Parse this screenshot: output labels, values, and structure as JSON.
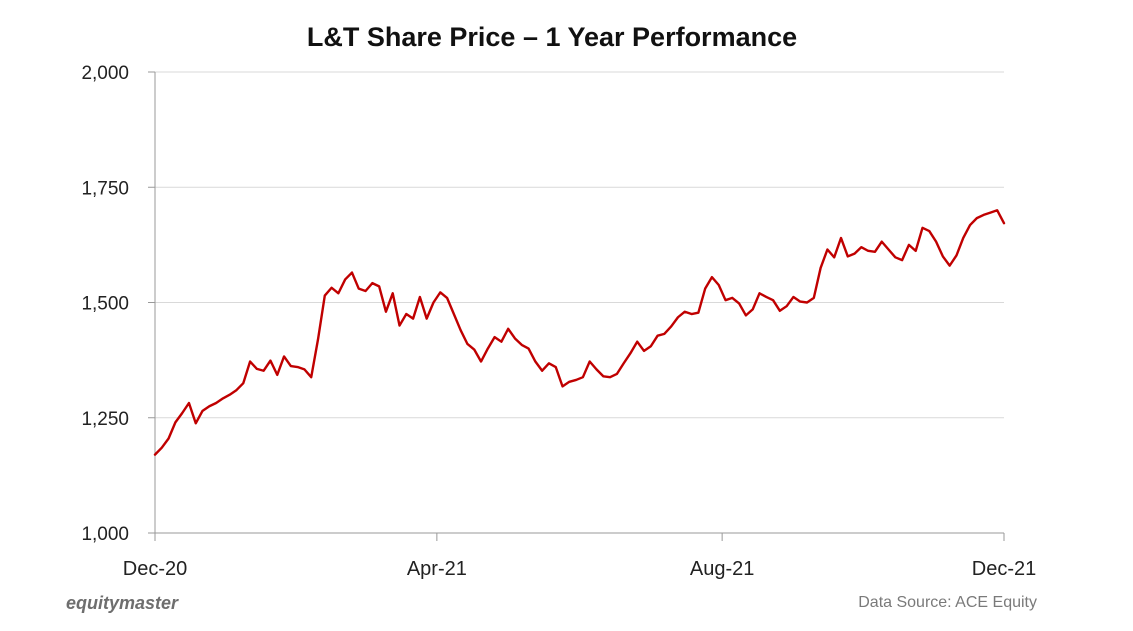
{
  "chart_data": {
    "type": "line",
    "title": "L&T Share Price – 1 Year Performance",
    "xlabel": "",
    "ylabel": "",
    "ylim": [
      1000,
      2000
    ],
    "yticks": [
      1000,
      1250,
      1500,
      1750,
      2000
    ],
    "ytick_labels": [
      "1,000",
      "1,250",
      "1,500",
      "1,750",
      "2,000"
    ],
    "xlim": [
      0,
      250
    ],
    "xticks": [
      0,
      83,
      167,
      250
    ],
    "xtick_labels": [
      "Dec-20",
      "Apr-21",
      "Aug-21",
      "Dec-21"
    ],
    "grid": "horizontal",
    "legend": "none",
    "colors": {
      "line": "#c00000",
      "grid": "#d9d9d9",
      "axis": "#999999"
    },
    "series": [
      {
        "name": "L&T Share Price",
        "points": [
          [
            0,
            1170
          ],
          [
            2,
            1185
          ],
          [
            4,
            1205
          ],
          [
            6,
            1240
          ],
          [
            8,
            1260
          ],
          [
            10,
            1282
          ],
          [
            12,
            1238
          ],
          [
            14,
            1265
          ],
          [
            16,
            1275
          ],
          [
            18,
            1282
          ],
          [
            20,
            1292
          ],
          [
            22,
            1300
          ],
          [
            24,
            1310
          ],
          [
            26,
            1325
          ],
          [
            28,
            1372
          ],
          [
            30,
            1356
          ],
          [
            32,
            1352
          ],
          [
            34,
            1374
          ],
          [
            36,
            1343
          ],
          [
            38,
            1383
          ],
          [
            40,
            1362
          ],
          [
            42,
            1360
          ],
          [
            44,
            1355
          ],
          [
            46,
            1338
          ],
          [
            48,
            1420
          ],
          [
            50,
            1515
          ],
          [
            52,
            1532
          ],
          [
            54,
            1520
          ],
          [
            56,
            1550
          ],
          [
            58,
            1565
          ],
          [
            60,
            1530
          ],
          [
            62,
            1525
          ],
          [
            64,
            1542
          ],
          [
            66,
            1535
          ],
          [
            68,
            1480
          ],
          [
            70,
            1520
          ],
          [
            72,
            1450
          ],
          [
            74,
            1475
          ],
          [
            76,
            1465
          ],
          [
            78,
            1512
          ],
          [
            80,
            1465
          ],
          [
            82,
            1500
          ],
          [
            84,
            1522
          ],
          [
            86,
            1510
          ],
          [
            88,
            1475
          ],
          [
            90,
            1440
          ],
          [
            92,
            1410
          ],
          [
            94,
            1398
          ],
          [
            96,
            1372
          ],
          [
            98,
            1400
          ],
          [
            100,
            1425
          ],
          [
            102,
            1415
          ],
          [
            104,
            1443
          ],
          [
            106,
            1422
          ],
          [
            108,
            1408
          ],
          [
            110,
            1400
          ],
          [
            112,
            1372
          ],
          [
            114,
            1352
          ],
          [
            116,
            1368
          ],
          [
            118,
            1360
          ],
          [
            120,
            1318
          ],
          [
            122,
            1328
          ],
          [
            124,
            1332
          ],
          [
            126,
            1338
          ],
          [
            128,
            1372
          ],
          [
            130,
            1355
          ],
          [
            132,
            1340
          ],
          [
            134,
            1338
          ],
          [
            136,
            1345
          ],
          [
            138,
            1368
          ],
          [
            140,
            1390
          ],
          [
            142,
            1415
          ],
          [
            144,
            1395
          ],
          [
            146,
            1405
          ],
          [
            148,
            1428
          ],
          [
            150,
            1432
          ],
          [
            152,
            1448
          ],
          [
            154,
            1468
          ],
          [
            156,
            1480
          ],
          [
            158,
            1475
          ],
          [
            160,
            1478
          ],
          [
            162,
            1530
          ],
          [
            164,
            1555
          ],
          [
            166,
            1538
          ],
          [
            168,
            1505
          ],
          [
            170,
            1510
          ],
          [
            172,
            1498
          ],
          [
            174,
            1472
          ],
          [
            176,
            1485
          ],
          [
            178,
            1520
          ],
          [
            180,
            1512
          ],
          [
            182,
            1505
          ],
          [
            184,
            1482
          ],
          [
            186,
            1492
          ],
          [
            188,
            1512
          ],
          [
            190,
            1502
          ],
          [
            192,
            1500
          ],
          [
            194,
            1510
          ],
          [
            196,
            1575
          ],
          [
            198,
            1615
          ],
          [
            200,
            1598
          ],
          [
            202,
            1640
          ],
          [
            204,
            1600
          ],
          [
            206,
            1606
          ],
          [
            208,
            1620
          ],
          [
            210,
            1612
          ],
          [
            212,
            1610
          ],
          [
            214,
            1632
          ],
          [
            216,
            1615
          ],
          [
            218,
            1598
          ],
          [
            220,
            1592
          ],
          [
            222,
            1625
          ],
          [
            224,
            1612
          ],
          [
            226,
            1662
          ],
          [
            228,
            1655
          ],
          [
            230,
            1632
          ],
          [
            232,
            1600
          ],
          [
            234,
            1580
          ],
          [
            236,
            1602
          ],
          [
            238,
            1640
          ],
          [
            240,
            1668
          ],
          [
            242,
            1683
          ],
          [
            244,
            1690
          ],
          [
            246,
            1695
          ],
          [
            248,
            1700
          ],
          [
            250,
            1672
          ]
        ]
      }
    ],
    "brand": "equitymaster",
    "source": "Data Source: ACE Equity"
  }
}
